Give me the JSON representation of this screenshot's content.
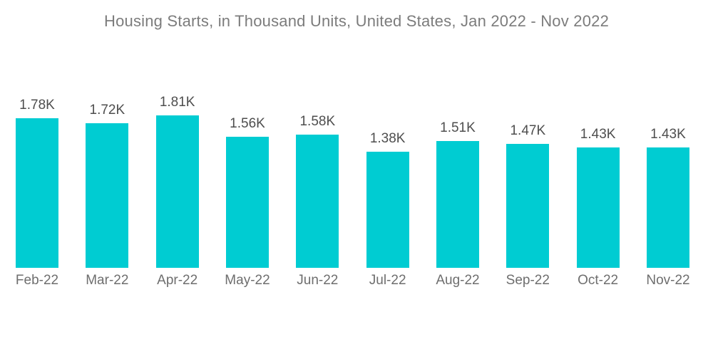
{
  "chart_data": {
    "type": "bar",
    "title": "Housing Starts, in Thousand Units, United States, Jan 2022 - Nov 2022",
    "categories": [
      "Feb-22",
      "Mar-22",
      "Apr-22",
      "May-22",
      "Jun-22",
      "Jul-22",
      "Aug-22",
      "Sep-22",
      "Oct-22",
      "Nov-22"
    ],
    "values": [
      1.78,
      1.72,
      1.81,
      1.56,
      1.58,
      1.38,
      1.51,
      1.47,
      1.43,
      1.43
    ],
    "value_labels": [
      "1.78K",
      "1.72K",
      "1.81K",
      "1.56K",
      "1.58K",
      "1.38K",
      "1.51K",
      "1.47K",
      "1.43K",
      "1.43K"
    ],
    "unit": "Thousand Units",
    "xlabel": "",
    "ylabel": "",
    "ylim": [
      0,
      1.81
    ],
    "grid": false,
    "legend": null,
    "bar_color": "#00CCD2",
    "title_color": "#7C7C7C",
    "value_label_color": "#4E4E4E",
    "axis_label_color": "#6E6E6E",
    "background_color": "#FFFFFF"
  }
}
